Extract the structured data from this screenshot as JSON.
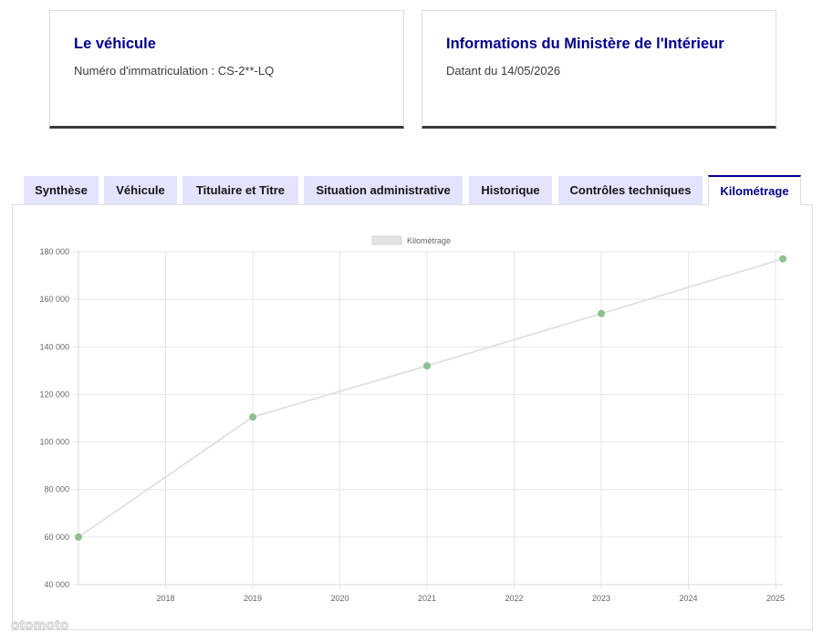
{
  "vehicule_card": {
    "title": "Le véhicule",
    "immatriculation": "Numéro d'immatriculation : CS-2**-LQ"
  },
  "ministere_card": {
    "title": "Informations du Ministère de l'Intérieur",
    "date": "Datant du 14/05/2026"
  },
  "tabs": [
    {
      "label": "Synthèse",
      "active": false
    },
    {
      "label": "Véhicule",
      "active": false
    },
    {
      "label": "Titulaire et Titre",
      "active": false
    },
    {
      "label": "Situation administrative",
      "active": false
    },
    {
      "label": "Historique",
      "active": false
    },
    {
      "label": "Contrôles techniques",
      "active": false
    },
    {
      "label": "Kilométrage",
      "active": true
    }
  ],
  "colors": {
    "accent": "#000091",
    "tab_bg": "#e3e3fd",
    "line": "#e2e2e2",
    "point": "#8dc08d"
  },
  "watermark": "otomoto",
  "chart_data": {
    "type": "line",
    "legend": [
      "Kilométrage"
    ],
    "legend_position": "top",
    "grid": true,
    "x_ticks": [
      "2018",
      "2019",
      "2020",
      "2021",
      "2022",
      "2023",
      "2024",
      "2025"
    ],
    "xlim": [
      "2017-07",
      "2025-08"
    ],
    "ylim": [
      40000,
      180000
    ],
    "y_ticks": [
      "40 000",
      "60 000",
      "80 000",
      "100 000",
      "120 000",
      "140 000",
      "160 000",
      "180 000"
    ],
    "series": [
      {
        "name": "Kilométrage",
        "points": [
          {
            "x": "2017-07",
            "y": 60000
          },
          {
            "x": "2019-07",
            "y": 110500
          },
          {
            "x": "2021-07",
            "y": 132000
          },
          {
            "x": "2023-07",
            "y": 154000
          },
          {
            "x": "2025-08",
            "y": 177000
          }
        ]
      }
    ]
  }
}
